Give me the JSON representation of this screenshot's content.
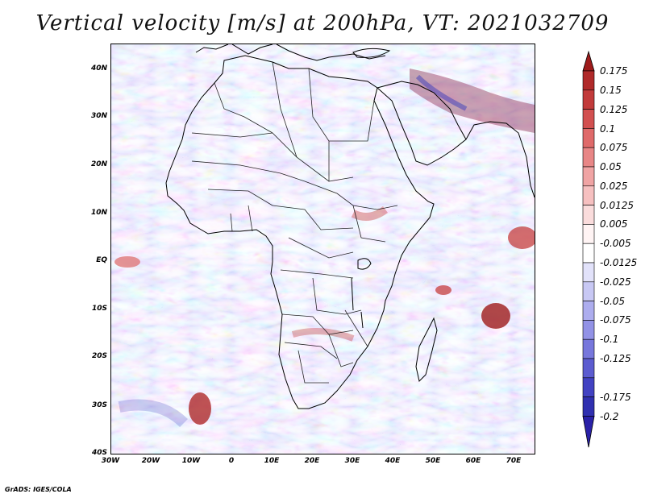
{
  "title": "Vertical velocity [m/s] at 200hPa, VT: 2021032709",
  "footer": "GrADS: IGES/COLA",
  "lat_labels": [
    "40N",
    "30N",
    "20N",
    "10N",
    "EQ",
    "10S",
    "20S",
    "30S",
    "40S"
  ],
  "lon_labels": [
    "30W",
    "20W",
    "10W",
    "0",
    "10E",
    "20E",
    "30E",
    "40E",
    "50E",
    "60E",
    "70E"
  ],
  "colorbar_labels": [
    "0.175",
    "0.15",
    "0.125",
    "0.1",
    "0.075",
    "0.05",
    "0.025",
    "0.0125",
    "0.005",
    "-0.005",
    "-0.0125",
    "-0.025",
    "-0.05",
    "-0.075",
    "-0.1",
    "-0.125",
    "-0.175",
    "-0.2"
  ],
  "colors": {
    "red_extreme": "#9e1b1b",
    "neutral": "#ffffff",
    "blue_extreme": "#2a21a8",
    "border": "#000000"
  }
}
